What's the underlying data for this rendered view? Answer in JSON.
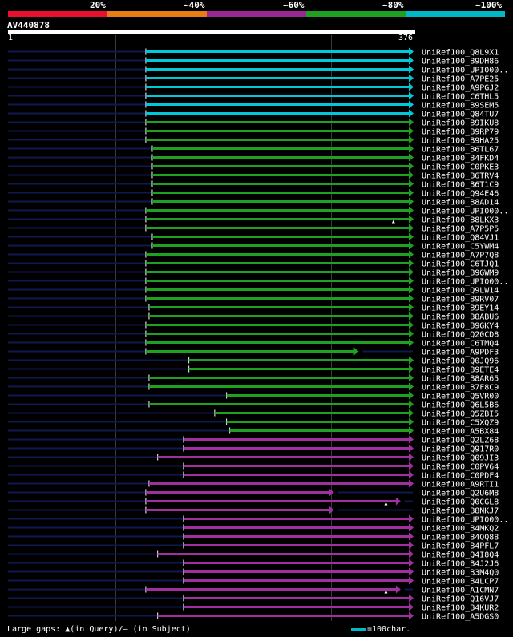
{
  "legend": [
    {
      "label": "20%",
      "color": "#e8102c"
    },
    {
      "label": "~40%",
      "color": "#e67e17"
    },
    {
      "label": "~60%",
      "color": "#9b2696"
    },
    {
      "label": "~80%",
      "color": "#20a020"
    },
    {
      "label": "~100%",
      "color": "#00b8c8"
    }
  ],
  "query": {
    "name": "AV440878",
    "start": "1",
    "end": "376",
    "length": 376
  },
  "colors": {
    "cyan": "#00c8d8",
    "green": "#20a020",
    "purple": "#a030a0",
    "unaligned": "#101850"
  },
  "hits": [
    {
      "label": "UniRef100_Q8L9X1",
      "start": 128,
      "end": 376,
      "color": "cyan",
      "arrow": true
    },
    {
      "label": "UniRef100_B9DH86",
      "start": 128,
      "end": 376,
      "color": "cyan",
      "arrow": true
    },
    {
      "label": "UniRef100_UPI000..",
      "start": 128,
      "end": 376,
      "color": "cyan",
      "arrow": true
    },
    {
      "label": "UniRef100_A7PE25",
      "start": 128,
      "end": 376,
      "color": "cyan",
      "arrow": true
    },
    {
      "label": "UniRef100_A9PGJ2",
      "start": 128,
      "end": 376,
      "color": "cyan",
      "arrow": true
    },
    {
      "label": "UniRef100_C6THL5",
      "start": 128,
      "end": 376,
      "color": "cyan",
      "arrow": true
    },
    {
      "label": "UniRef100_B9SEM5",
      "start": 128,
      "end": 376,
      "color": "cyan",
      "arrow": true
    },
    {
      "label": "UniRef100_Q84TU7",
      "start": 128,
      "end": 376,
      "color": "cyan",
      "arrow": true
    },
    {
      "label": "UniRef100_B9IKU8",
      "start": 128,
      "end": 376,
      "color": "green",
      "arrow": true
    },
    {
      "label": "UniRef100_B9RP79",
      "start": 128,
      "end": 376,
      "color": "green",
      "arrow": true
    },
    {
      "label": "UniRef100_B9HA25",
      "start": 128,
      "end": 376,
      "color": "green",
      "arrow": true
    },
    {
      "label": "UniRef100_B6TL67",
      "start": 134,
      "end": 376,
      "color": "green",
      "arrow": true
    },
    {
      "label": "UniRef100_B4FKD4",
      "start": 134,
      "end": 376,
      "color": "green",
      "arrow": true
    },
    {
      "label": "UniRef100_C0PKE3",
      "start": 134,
      "end": 376,
      "color": "green",
      "arrow": true
    },
    {
      "label": "UniRef100_B6TRV4",
      "start": 134,
      "end": 376,
      "color": "green",
      "arrow": true
    },
    {
      "label": "UniRef100_B6T1C9",
      "start": 134,
      "end": 376,
      "color": "green",
      "arrow": true
    },
    {
      "label": "UniRef100_Q94E46",
      "start": 134,
      "end": 376,
      "color": "green",
      "arrow": true
    },
    {
      "label": "UniRef100_B8AD14",
      "start": 134,
      "end": 376,
      "color": "green",
      "arrow": true
    },
    {
      "label": "UniRef100_UPI000..",
      "start": 128,
      "end": 376,
      "color": "green",
      "arrow": true
    },
    {
      "label": "UniRef100_B8LKX3",
      "start": 128,
      "end": 376,
      "color": "green",
      "arrow": true,
      "gap": 358
    },
    {
      "label": "UniRef100_A7P5P5",
      "start": 128,
      "end": 376,
      "color": "green",
      "arrow": true
    },
    {
      "label": "UniRef100_Q84VJ1",
      "start": 134,
      "end": 376,
      "color": "green",
      "arrow": true
    },
    {
      "label": "UniRef100_C5YWM4",
      "start": 134,
      "end": 376,
      "color": "green",
      "arrow": true
    },
    {
      "label": "UniRef100_A7P7Q8",
      "start": 128,
      "end": 376,
      "color": "green",
      "arrow": true
    },
    {
      "label": "UniRef100_C6TJQ1",
      "start": 128,
      "end": 376,
      "color": "green",
      "arrow": true
    },
    {
      "label": "UniRef100_B9GWM9",
      "start": 128,
      "end": 376,
      "color": "green",
      "arrow": true
    },
    {
      "label": "UniRef100_UPI000..",
      "start": 128,
      "end": 376,
      "color": "green",
      "arrow": true
    },
    {
      "label": "UniRef100_Q9LW14",
      "start": 128,
      "end": 376,
      "color": "green",
      "arrow": true
    },
    {
      "label": "UniRef100_B9RV07",
      "start": 128,
      "end": 376,
      "color": "green",
      "arrow": true
    },
    {
      "label": "UniRef100_B9EY14",
      "start": 131,
      "end": 376,
      "color": "green",
      "arrow": true
    },
    {
      "label": "UniRef100_B8ABU6",
      "start": 131,
      "end": 376,
      "color": "green",
      "arrow": true
    },
    {
      "label": "UniRef100_B9GKY4",
      "start": 128,
      "end": 376,
      "color": "green",
      "arrow": true
    },
    {
      "label": "UniRef100_Q20CD8",
      "start": 128,
      "end": 376,
      "color": "green",
      "arrow": true
    },
    {
      "label": "UniRef100_C6TMQ4",
      "start": 128,
      "end": 376,
      "color": "green",
      "arrow": true
    },
    {
      "label": "UniRef100_A9PDF3",
      "start": 128,
      "end": 325,
      "color": "green",
      "arrow": true
    },
    {
      "label": "UniRef100_Q0JQ96",
      "start": 168,
      "end": 376,
      "color": "green",
      "arrow": true
    },
    {
      "label": "UniRef100_B9ETE4",
      "start": 168,
      "end": 376,
      "color": "green",
      "arrow": true
    },
    {
      "label": "UniRef100_B8AR65",
      "start": 131,
      "end": 376,
      "color": "green",
      "arrow": true
    },
    {
      "label": "UniRef100_B7F8C9",
      "start": 131,
      "end": 376,
      "color": "green",
      "arrow": true
    },
    {
      "label": "UniRef100_Q5VR00",
      "start": 203,
      "end": 376,
      "color": "green",
      "arrow": true
    },
    {
      "label": "UniRef100_Q6L5B6",
      "start": 131,
      "end": 376,
      "color": "green",
      "arrow": true
    },
    {
      "label": "UniRef100_Q5ZBI5",
      "start": 192,
      "end": 376,
      "color": "green",
      "arrow": true
    },
    {
      "label": "UniRef100_C5XQZ9",
      "start": 203,
      "end": 376,
      "color": "green",
      "arrow": true
    },
    {
      "label": "UniRef100_A5BX84",
      "start": 206,
      "end": 376,
      "color": "green",
      "arrow": true
    },
    {
      "label": "UniRef100_Q2LZ68",
      "start": 163,
      "end": 376,
      "color": "purple",
      "arrow": true
    },
    {
      "label": "UniRef100_Q917R0",
      "start": 163,
      "end": 376,
      "color": "purple",
      "arrow": true
    },
    {
      "label": "UniRef100_Q09JI3",
      "start": 139,
      "end": 376,
      "color": "purple",
      "arrow": true
    },
    {
      "label": "UniRef100_C0PV64",
      "start": 163,
      "end": 376,
      "color": "purple",
      "arrow": true
    },
    {
      "label": "UniRef100_C0PDF4",
      "start": 163,
      "end": 376,
      "color": "purple",
      "arrow": true
    },
    {
      "label": "UniRef100_A9RTI1",
      "start": 131,
      "end": 376,
      "color": "purple",
      "arrow": true
    },
    {
      "label": "UniRef100_Q2U6M8",
      "start": 128,
      "end": 302,
      "color": "purple",
      "arrow": true
    },
    {
      "label": "UniRef100_Q0CGL8",
      "start": 128,
      "end": 364,
      "color": "purple",
      "arrow": true,
      "gap": 351
    },
    {
      "label": "UniRef100_B8NKJ7",
      "start": 128,
      "end": 302,
      "color": "purple",
      "arrow": true
    },
    {
      "label": "UniRef100_UPI000..",
      "start": 163,
      "end": 376,
      "color": "purple",
      "arrow": true
    },
    {
      "label": "UniRef100_B4MKQ2",
      "start": 163,
      "end": 376,
      "color": "purple",
      "arrow": true
    },
    {
      "label": "UniRef100_B4QQ88",
      "start": 163,
      "end": 376,
      "color": "purple",
      "arrow": true
    },
    {
      "label": "UniRef100_B4PFL7",
      "start": 163,
      "end": 376,
      "color": "purple",
      "arrow": true
    },
    {
      "label": "UniRef100_Q4I8Q4",
      "start": 139,
      "end": 376,
      "color": "purple",
      "arrow": true
    },
    {
      "label": "UniRef100_B4J2J6",
      "start": 163,
      "end": 376,
      "color": "purple",
      "arrow": true
    },
    {
      "label": "UniRef100_B3M4Q0",
      "start": 163,
      "end": 376,
      "color": "purple",
      "arrow": true
    },
    {
      "label": "UniRef100_B4LCP7",
      "start": 163,
      "end": 376,
      "color": "purple",
      "arrow": true
    },
    {
      "label": "UniRef100_A1CMN7",
      "start": 128,
      "end": 364,
      "color": "purple",
      "arrow": true,
      "gap": 351
    },
    {
      "label": "UniRef100_Q16VJ7",
      "start": 163,
      "end": 376,
      "color": "purple",
      "arrow": true
    },
    {
      "label": "UniRef100_B4KUR2",
      "start": 163,
      "end": 376,
      "color": "purple",
      "arrow": true
    },
    {
      "label": "UniRef100_A5DGS0",
      "start": 139,
      "end": 376,
      "color": "purple",
      "arrow": true
    }
  ],
  "footer": {
    "text": "Large gaps: ▲(in Query)/– (in Subject)",
    "scale_text": "=100char."
  }
}
